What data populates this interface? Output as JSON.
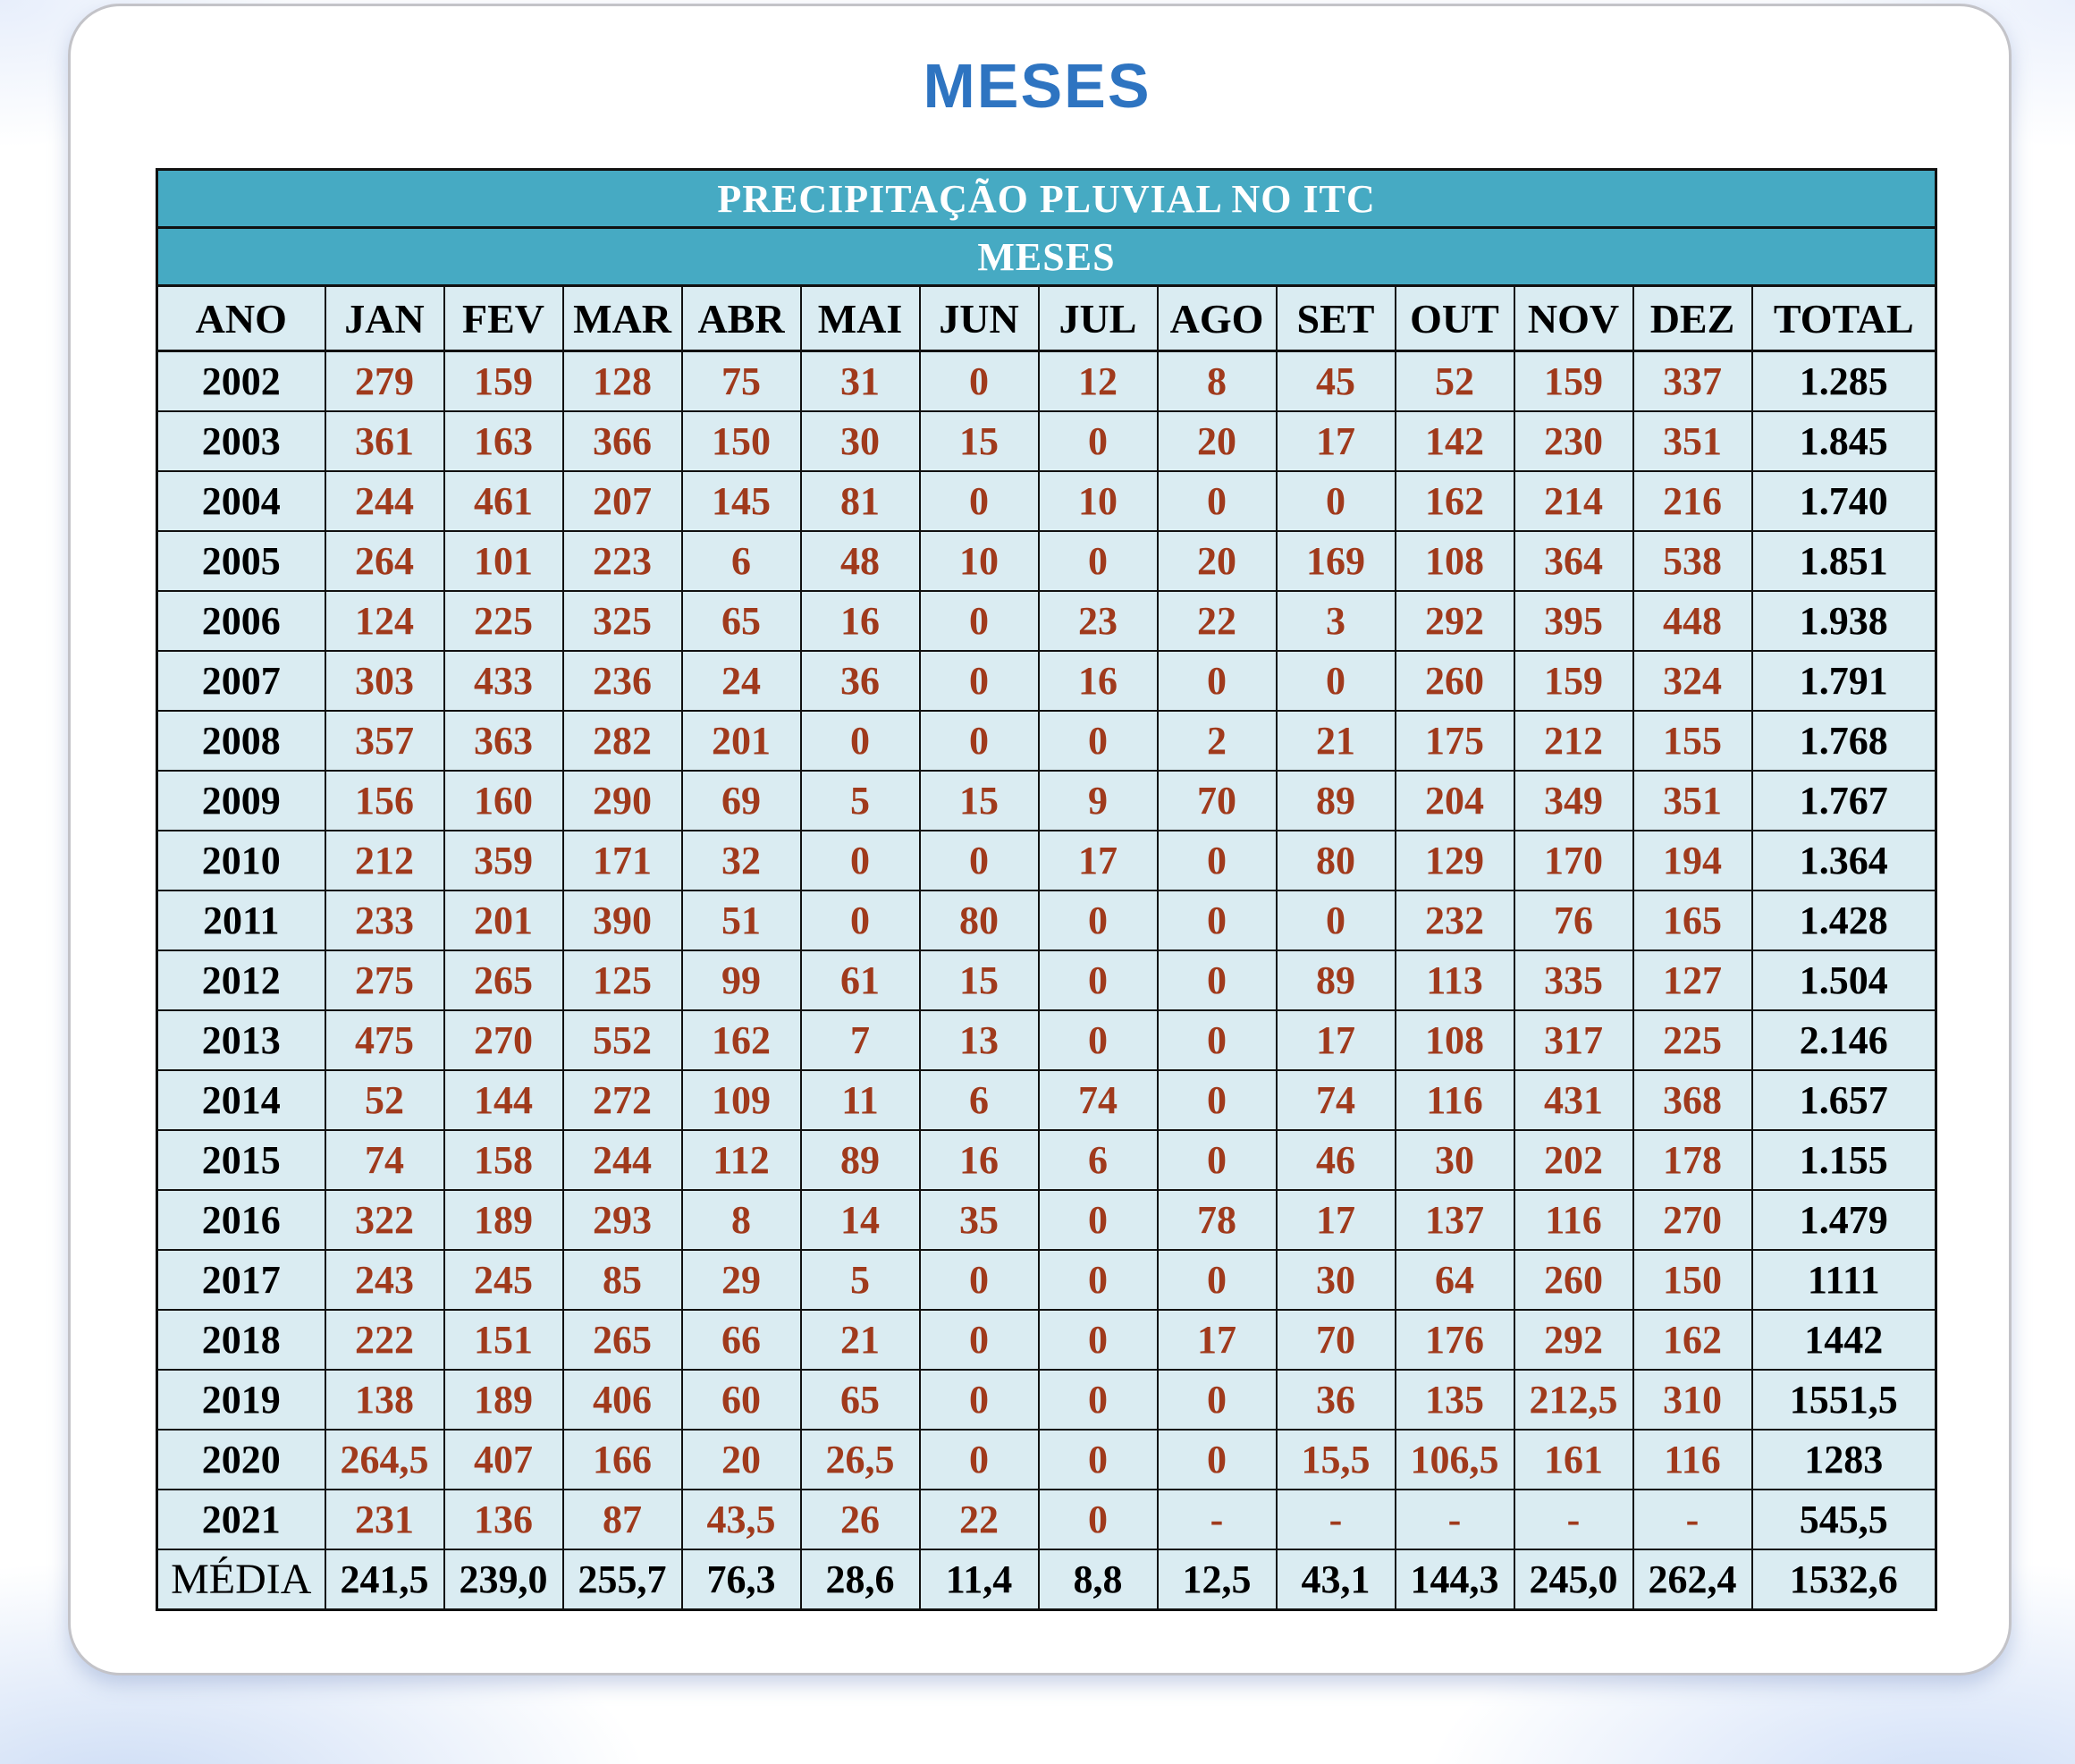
{
  "page": {
    "title": "MESES"
  },
  "colors": {
    "title_blue": "#2e74c1",
    "header_teal": "#46aac3",
    "cell_bg": "#daecf2",
    "value_red": "#a03a1c",
    "text_black": "#000000",
    "card_border": "#c3c3c8"
  },
  "chart_data": {
    "type": "table",
    "title": "PRECIPITAÇÃO PLUVIAL NO ITC",
    "subtitle": "MESES",
    "columns": [
      "ANO",
      "JAN",
      "FEV",
      "MAR",
      "ABR",
      "MAI",
      "JUN",
      "JUL",
      "AGO",
      "SET",
      "OUT",
      "NOV",
      "DEZ",
      "TOTAL"
    ],
    "rows": [
      {
        "ano": "2002",
        "months": [
          "279",
          "159",
          "128",
          "75",
          "31",
          "0",
          "12",
          "8",
          "45",
          "52",
          "159",
          "337"
        ],
        "total": "1.285"
      },
      {
        "ano": "2003",
        "months": [
          "361",
          "163",
          "366",
          "150",
          "30",
          "15",
          "0",
          "20",
          "17",
          "142",
          "230",
          "351"
        ],
        "total": "1.845"
      },
      {
        "ano": "2004",
        "months": [
          "244",
          "461",
          "207",
          "145",
          "81",
          "0",
          "10",
          "0",
          "0",
          "162",
          "214",
          "216"
        ],
        "total": "1.740"
      },
      {
        "ano": "2005",
        "months": [
          "264",
          "101",
          "223",
          "6",
          "48",
          "10",
          "0",
          "20",
          "169",
          "108",
          "364",
          "538"
        ],
        "total": "1.851"
      },
      {
        "ano": "2006",
        "months": [
          "124",
          "225",
          "325",
          "65",
          "16",
          "0",
          "23",
          "22",
          "3",
          "292",
          "395",
          "448"
        ],
        "total": "1.938"
      },
      {
        "ano": "2007",
        "months": [
          "303",
          "433",
          "236",
          "24",
          "36",
          "0",
          "16",
          "0",
          "0",
          "260",
          "159",
          "324"
        ],
        "total": "1.791"
      },
      {
        "ano": "2008",
        "months": [
          "357",
          "363",
          "282",
          "201",
          "0",
          "0",
          "0",
          "2",
          "21",
          "175",
          "212",
          "155"
        ],
        "total": "1.768"
      },
      {
        "ano": "2009",
        "months": [
          "156",
          "160",
          "290",
          "69",
          "5",
          "15",
          "9",
          "70",
          "89",
          "204",
          "349",
          "351"
        ],
        "total": "1.767"
      },
      {
        "ano": "2010",
        "months": [
          "212",
          "359",
          "171",
          "32",
          "0",
          "0",
          "17",
          "0",
          "80",
          "129",
          "170",
          "194"
        ],
        "total": "1.364"
      },
      {
        "ano": "2011",
        "months": [
          "233",
          "201",
          "390",
          "51",
          "0",
          "80",
          "0",
          "0",
          "0",
          "232",
          "76",
          "165"
        ],
        "total": "1.428"
      },
      {
        "ano": "2012",
        "months": [
          "275",
          "265",
          "125",
          "99",
          "61",
          "15",
          "0",
          "0",
          "89",
          "113",
          "335",
          "127"
        ],
        "total": "1.504"
      },
      {
        "ano": "2013",
        "months": [
          "475",
          "270",
          "552",
          "162",
          "7",
          "13",
          "0",
          "0",
          "17",
          "108",
          "317",
          "225"
        ],
        "total": "2.146"
      },
      {
        "ano": "2014",
        "months": [
          "52",
          "144",
          "272",
          "109",
          "11",
          "6",
          "74",
          "0",
          "74",
          "116",
          "431",
          "368"
        ],
        "total": "1.657"
      },
      {
        "ano": "2015",
        "months": [
          "74",
          "158",
          "244",
          "112",
          "89",
          "16",
          "6",
          "0",
          "46",
          "30",
          "202",
          "178"
        ],
        "total": "1.155"
      },
      {
        "ano": "2016",
        "months": [
          "322",
          "189",
          "293",
          "8",
          "14",
          "35",
          "0",
          "78",
          "17",
          "137",
          "116",
          "270"
        ],
        "total": "1.479"
      },
      {
        "ano": "2017",
        "months": [
          "243",
          "245",
          "85",
          "29",
          "5",
          "0",
          "0",
          "0",
          "30",
          "64",
          "260",
          "150"
        ],
        "total": "1111"
      },
      {
        "ano": "2018",
        "months": [
          "222",
          "151",
          "265",
          "66",
          "21",
          "0",
          "0",
          "17",
          "70",
          "176",
          "292",
          "162"
        ],
        "total": "1442"
      },
      {
        "ano": "2019",
        "months": [
          "138",
          "189",
          "406",
          "60",
          "65",
          "0",
          "0",
          "0",
          "36",
          "135",
          "212,5",
          "310"
        ],
        "total": "1551,5"
      },
      {
        "ano": "2020",
        "months": [
          "264,5",
          "407",
          "166",
          "20",
          "26,5",
          "0",
          "0",
          "0",
          "15,5",
          "106,5",
          "161",
          "116"
        ],
        "total": "1283"
      },
      {
        "ano": "2021",
        "months": [
          "231",
          "136",
          "87",
          "43,5",
          "26",
          "22",
          "0",
          "-",
          "-",
          "-",
          "-",
          "-"
        ],
        "total": "545,5"
      },
      {
        "ano": "MÉDIA",
        "months": [
          "241,5",
          "239,0",
          "255,7",
          "76,3",
          "28,6",
          "11,4",
          "8,8",
          "12,5",
          "43,1",
          "144,3",
          "245,0",
          "262,4"
        ],
        "total": "1532,6",
        "summary": true
      }
    ]
  }
}
